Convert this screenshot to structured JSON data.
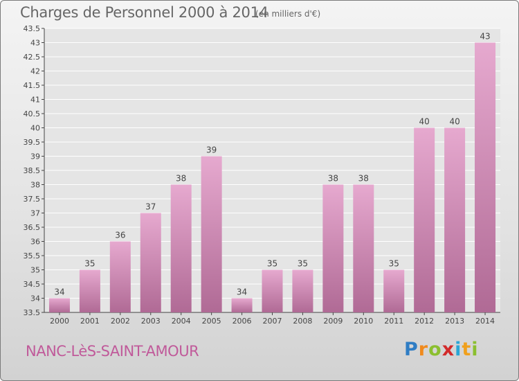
{
  "header": {
    "title": "Charges de Personnel 2000 à 2014",
    "subtitle": "(en milliers d'€)"
  },
  "footer": {
    "commune": "NANC-LèS-SAINT-AMOUR",
    "logo_letters": [
      "P",
      "r",
      "o",
      "x",
      "i",
      "t",
      "i"
    ],
    "logo_colors": [
      "#2f7dc4",
      "#f08a1d",
      "#8bbf2f",
      "#d22a2a",
      "#2aa6d6",
      "#f0a01d",
      "#8bbf2f"
    ]
  },
  "chart_data": {
    "type": "bar",
    "categories": [
      "2000",
      "2001",
      "2002",
      "2003",
      "2004",
      "2005",
      "2006",
      "2007",
      "2008",
      "2009",
      "2010",
      "2011",
      "2012",
      "2013",
      "2014"
    ],
    "values": [
      34,
      35,
      36,
      37,
      38,
      39,
      34,
      35,
      35,
      38,
      38,
      35,
      40,
      40,
      43
    ],
    "value_labels": [
      "34",
      "35",
      "36",
      "37",
      "38",
      "39",
      "34",
      "35",
      "35",
      "38",
      "38",
      "35",
      "40",
      "40",
      "43"
    ],
    "y_ticks": [
      "33.5",
      "34",
      "34.5",
      "35",
      "35.5",
      "36",
      "36.5",
      "37",
      "37.5",
      "38",
      "38.5",
      "39",
      "39.5",
      "40",
      "40.5",
      "41",
      "41.5",
      "42",
      "42.5",
      "43",
      "43.5"
    ],
    "ylim": [
      33.5,
      43.5
    ],
    "grid": true,
    "bar_color_top": "#e6a9cf",
    "bar_color_bottom": "#b06a95"
  }
}
